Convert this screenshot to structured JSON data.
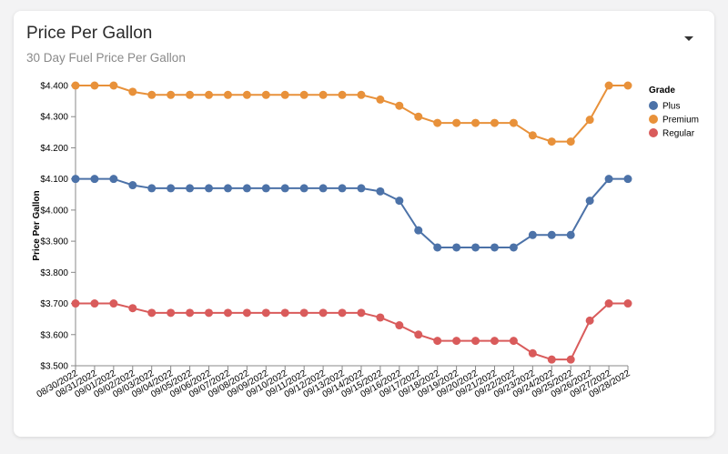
{
  "header": {
    "title": "Price Per Gallon",
    "subtitle": "30 Day Fuel Price Per Gallon",
    "menu_icon": "caret-down-icon"
  },
  "chart_data": {
    "type": "line",
    "ylabel": "Price Per Gallon",
    "ylim": [
      3.5,
      4.4
    ],
    "y_ticks": [
      3.5,
      3.6,
      3.7,
      3.8,
      3.9,
      4.0,
      4.1,
      4.2,
      4.3,
      4.4
    ],
    "y_tick_labels": [
      "$3.500",
      "$3.600",
      "$3.700",
      "$3.800",
      "$3.900",
      "$4.000",
      "$4.100",
      "$4.200",
      "$4.300",
      "$4.400"
    ],
    "x": [
      "08/30/2022",
      "08/31/2022",
      "09/01/2022",
      "09/02/2022",
      "09/03/2022",
      "09/04/2022",
      "09/05/2022",
      "09/06/2022",
      "09/07/2022",
      "09/08/2022",
      "09/09/2022",
      "09/10/2022",
      "09/11/2022",
      "09/12/2022",
      "09/13/2022",
      "09/14/2022",
      "09/15/2022",
      "09/16/2022",
      "09/17/2022",
      "09/18/2022",
      "09/19/2022",
      "09/20/2022",
      "09/21/2022",
      "09/22/2022",
      "09/23/2022",
      "09/24/2022",
      "09/25/2022",
      "09/26/2022",
      "09/27/2022",
      "09/28/2022"
    ],
    "legend": {
      "title": "Grade",
      "position": "right"
    },
    "series": [
      {
        "name": "Plus",
        "color": "#4c72a8",
        "values": [
          4.1,
          4.1,
          4.1,
          4.08,
          4.07,
          4.07,
          4.07,
          4.07,
          4.07,
          4.07,
          4.07,
          4.07,
          4.07,
          4.07,
          4.07,
          4.07,
          4.06,
          4.03,
          3.935,
          3.88,
          3.88,
          3.88,
          3.88,
          3.88,
          3.92,
          3.92,
          3.92,
          4.03,
          4.1,
          4.1
        ]
      },
      {
        "name": "Premium",
        "color": "#e8913a",
        "values": [
          4.4,
          4.4,
          4.4,
          4.38,
          4.37,
          4.37,
          4.37,
          4.37,
          4.37,
          4.37,
          4.37,
          4.37,
          4.37,
          4.37,
          4.37,
          4.37,
          4.355,
          4.335,
          4.3,
          4.28,
          4.28,
          4.28,
          4.28,
          4.28,
          4.24,
          4.22,
          4.22,
          4.29,
          4.4,
          4.4
        ]
      },
      {
        "name": "Regular",
        "color": "#d95b5b",
        "values": [
          3.7,
          3.7,
          3.7,
          3.685,
          3.67,
          3.67,
          3.67,
          3.67,
          3.67,
          3.67,
          3.67,
          3.67,
          3.67,
          3.67,
          3.67,
          3.67,
          3.655,
          3.63,
          3.6,
          3.58,
          3.58,
          3.58,
          3.58,
          3.58,
          3.54,
          3.52,
          3.52,
          3.645,
          3.7,
          3.7
        ]
      }
    ]
  }
}
